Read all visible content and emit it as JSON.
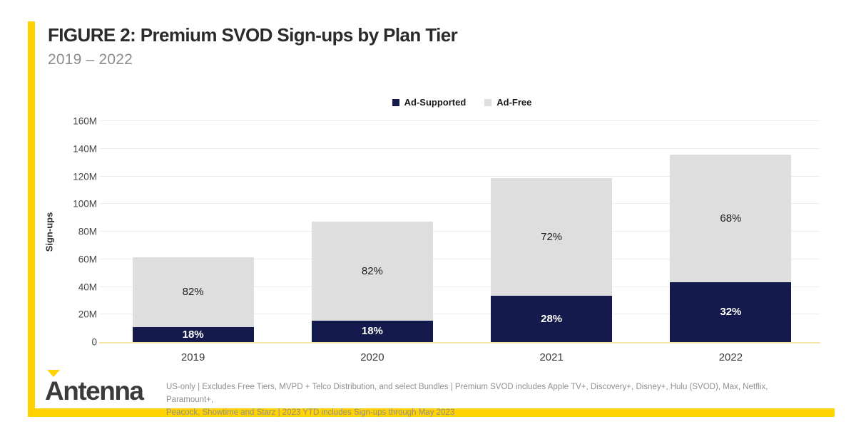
{
  "header": {
    "title": "FIGURE 2: Premium SVOD Sign-ups by Plan Tier",
    "subtitle": "2019 – 2022"
  },
  "legend": [
    {
      "label": "Ad-Supported",
      "color": "#141b4c"
    },
    {
      "label": "Ad-Free",
      "color": "#dedede"
    }
  ],
  "chart_data": {
    "type": "bar",
    "stacked": true,
    "title": "FIGURE 2: Premium SVOD Sign-ups by Plan Tier",
    "subtitle": "2019 – 2022",
    "categories": [
      "2019",
      "2020",
      "2021",
      "2022"
    ],
    "series": [
      {
        "name": "Ad-Supported",
        "color": "#141b4c",
        "values_millions": [
          11,
          15.5,
          33.5,
          43.5
        ],
        "labels": [
          "18%",
          "18%",
          "28%",
          "32%"
        ],
        "label_color": "#ffffff",
        "label_bold": true
      },
      {
        "name": "Ad-Free",
        "color": "#dedede",
        "values_millions": [
          50.5,
          71.5,
          85,
          92.5
        ],
        "labels": [
          "82%",
          "82%",
          "72%",
          "68%"
        ],
        "label_color": "#1c1c1c",
        "label_bold": false
      }
    ],
    "totals_millions": [
      61.5,
      87,
      118.5,
      136
    ],
    "xlabel": "",
    "ylabel": "Sign-ups",
    "ylim": [
      0,
      160
    ],
    "yticks": [
      {
        "value": 0,
        "label": "0"
      },
      {
        "value": 20,
        "label": "20M"
      },
      {
        "value": 40,
        "label": "40M"
      },
      {
        "value": 60,
        "label": "60M"
      },
      {
        "value": 80,
        "label": "80M"
      },
      {
        "value": 100,
        "label": "100M"
      },
      {
        "value": 120,
        "label": "120M"
      },
      {
        "value": 140,
        "label": "140M"
      },
      {
        "value": 160,
        "label": "160M"
      }
    ],
    "grid": true,
    "legend_position": "top-center"
  },
  "footer": {
    "brand": "Antenna",
    "note_lines": [
      "US-only | Excludes Free Tiers, MVPD + Telco Distribution, and select Bundles | Premium SVOD includes Apple TV+, Discovery+, Disney+, Hulu (SVOD), Max, Netflix, Paramount+,",
      "Peacock, Showtime and Starz | 2023 YTD includes Sign-ups through May 2023"
    ]
  },
  "colors": {
    "accent_yellow": "#ffd200",
    "ad_supported_navy": "#141b4c",
    "ad_free_gray": "#dedede",
    "gridline": "#ededed",
    "baseline_yellow": "#f3e7ad",
    "title_text": "#2b2b2b",
    "subtitle_text": "#8c8c8c",
    "footnote_text": "#8f8f8f"
  }
}
